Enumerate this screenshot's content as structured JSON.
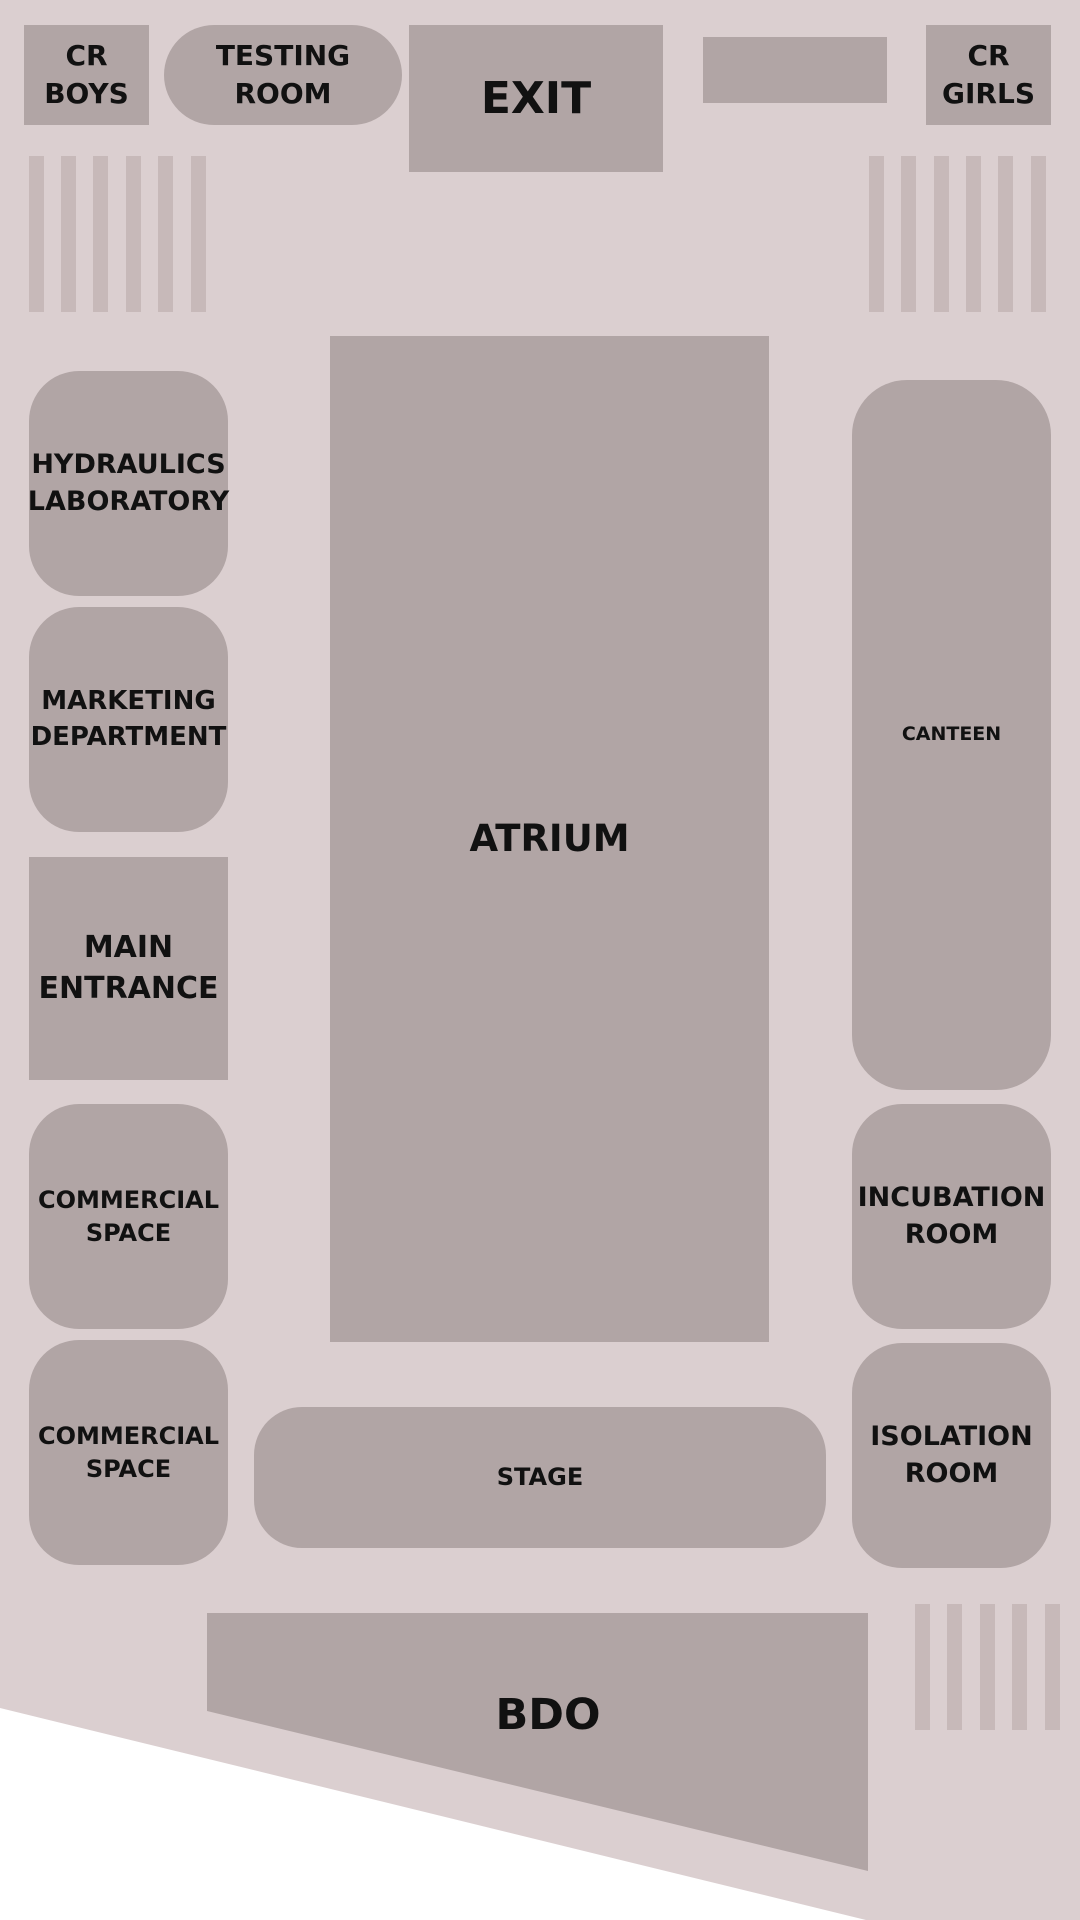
{
  "colors": {
    "floor": "#dbcfd0",
    "room": "#b1a5a5",
    "stripe": "#c7b9b9",
    "text": "#111111",
    "outside": "#ffffff"
  },
  "rooms": {
    "cr_boys": [
      "CR",
      "BOYS"
    ],
    "testing_room": [
      "TESTING",
      "ROOM"
    ],
    "exit": "EXIT",
    "unlabeled_block": "",
    "cr_girls": [
      "CR",
      "GIRLS"
    ],
    "hydraulics_laboratory": [
      "HYDRAULICS",
      "LABORATORY"
    ],
    "marketing_department": [
      "MARKETING",
      "DEPARTMENT"
    ],
    "main_entrance": [
      "MAIN",
      "ENTRANCE"
    ],
    "commercial_space_1": [
      "COMMERCIAL",
      "SPACE"
    ],
    "commercial_space_2": [
      "COMMERCIAL",
      "SPACE"
    ],
    "atrium": "ATRIUM",
    "canteen": "CANTEEN",
    "incubation_room": [
      "INCUBATION",
      "ROOM"
    ],
    "isolation_room": [
      "ISOLATION",
      "ROOM"
    ],
    "stage": "STAGE",
    "bdo": "BDO"
  }
}
